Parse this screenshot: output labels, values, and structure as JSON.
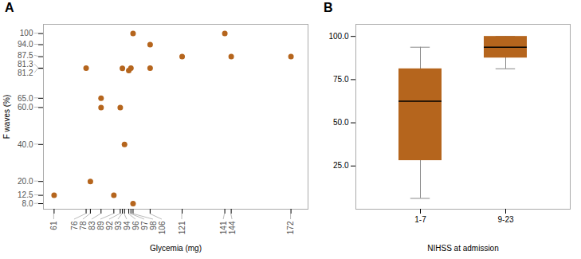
{
  "chart_data": [
    {
      "type": "scatter",
      "title": "A",
      "x": [
        61,
        76,
        78,
        83,
        83,
        89,
        92,
        93,
        94,
        96,
        97,
        98,
        98,
        106,
        106,
        121,
        141,
        144,
        172
      ],
      "values": [
        12.5,
        81.3,
        20.0,
        65.0,
        60.0,
        12.5,
        60.0,
        81.2,
        40.0,
        80.0,
        81.3,
        100.0,
        8.0,
        94.0,
        81.3,
        87.5,
        100.0,
        87.5,
        87.5
      ],
      "color": "#b5651d",
      "xlabel": "Glycemia (mg)",
      "ylabel": "F waves (%)",
      "xlim": [
        56,
        180
      ],
      "ylim": [
        5,
        105
      ],
      "xticks": [
        61,
        76,
        78,
        83,
        89,
        92,
        93,
        94,
        96,
        97,
        98,
        106,
        121,
        141,
        144,
        172
      ],
      "yticks": [
        {
          "value": 8.0,
          "label": "8.0"
        },
        12.5,
        {
          "value": 20.0,
          "label": "20.0"
        },
        {
          "value": 40.0,
          "label": "40.0"
        },
        {
          "value": 60.0,
          "label": "60.0"
        },
        {
          "value": 65.0,
          "label": "65.0"
        },
        81.2,
        81.3,
        87.5,
        {
          "value": 94.0,
          "label": "94.0"
        },
        100
      ]
    },
    {
      "type": "box",
      "title": "B",
      "categories": [
        "1-7",
        "9-23"
      ],
      "whisker_low": [
        6.25,
        81.25
      ],
      "q1": [
        28.125,
        87.5
      ],
      "median": [
        62.5,
        93.75
      ],
      "q3": [
        81.25,
        100.0
      ],
      "whisker_high": [
        93.75,
        100.0
      ],
      "color": "#b5651d",
      "xlabel": "NIHSS at admission",
      "ylim": [
        0,
        107
      ],
      "yticks": [
        {
          "value": 25.0,
          "label": "25.0"
        },
        {
          "value": 50.0,
          "label": "50.0"
        },
        {
          "value": 75.0,
          "label": "75.0"
        },
        {
          "value": 100.0,
          "label": "100.0"
        }
      ]
    }
  ]
}
